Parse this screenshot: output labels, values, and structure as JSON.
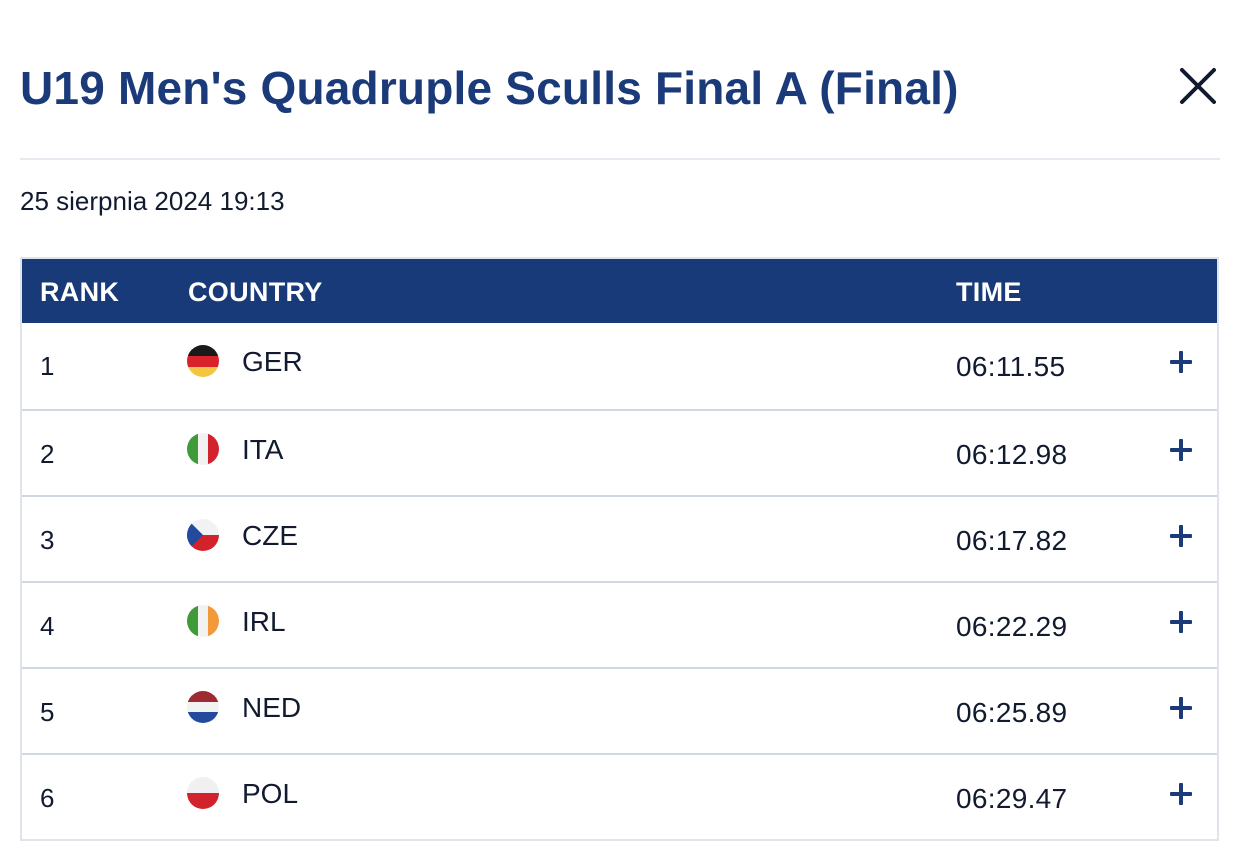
{
  "modal": {
    "title": "U19 Men's Quadruple Sculls Final A (Final)",
    "close_icon": "close-icon",
    "date": "25 sierpnia 2024 19:13"
  },
  "table": {
    "headers": {
      "rank": "RANK",
      "country": "COUNTRY",
      "time": "TIME"
    },
    "rows": [
      {
        "rank": "1",
        "country": "GER",
        "time": "06:11.55",
        "flag_icon": "flag-germany-icon",
        "flag_colors": [
          "#1a1a1a",
          "#d8232a",
          "#f4c542"
        ]
      },
      {
        "rank": "2",
        "country": "ITA",
        "time": "06:12.98",
        "flag_icon": "flag-italy-icon",
        "flag_colors": [
          "#3f9b3a",
          "#f2f2f2",
          "#d2232c"
        ]
      },
      {
        "rank": "3",
        "country": "CZE",
        "time": "06:17.82",
        "flag_icon": "flag-czech-icon",
        "flag_colors": [
          "#f2f2f2",
          "#d2232c",
          "#244a9e"
        ]
      },
      {
        "rank": "4",
        "country": "IRL",
        "time": "06:22.29",
        "flag_icon": "flag-ireland-icon",
        "flag_colors": [
          "#3f9b3a",
          "#f2f2f2",
          "#f29a3a"
        ]
      },
      {
        "rank": "5",
        "country": "NED",
        "time": "06:25.89",
        "flag_icon": "flag-netherlands-icon",
        "flag_colors": [
          "#9e2a33",
          "#f2f2f2",
          "#244a9e"
        ]
      },
      {
        "rank": "6",
        "country": "POL",
        "time": "06:29.47",
        "flag_icon": "flag-poland-icon",
        "flag_colors": [
          "#f0f0f0",
          "#d2232c"
        ]
      }
    ],
    "expand_icon": "plus-icon"
  },
  "colors": {
    "title": "#1a3a7a",
    "header_bg": "#183a78",
    "accent": "#1a3a7a"
  }
}
